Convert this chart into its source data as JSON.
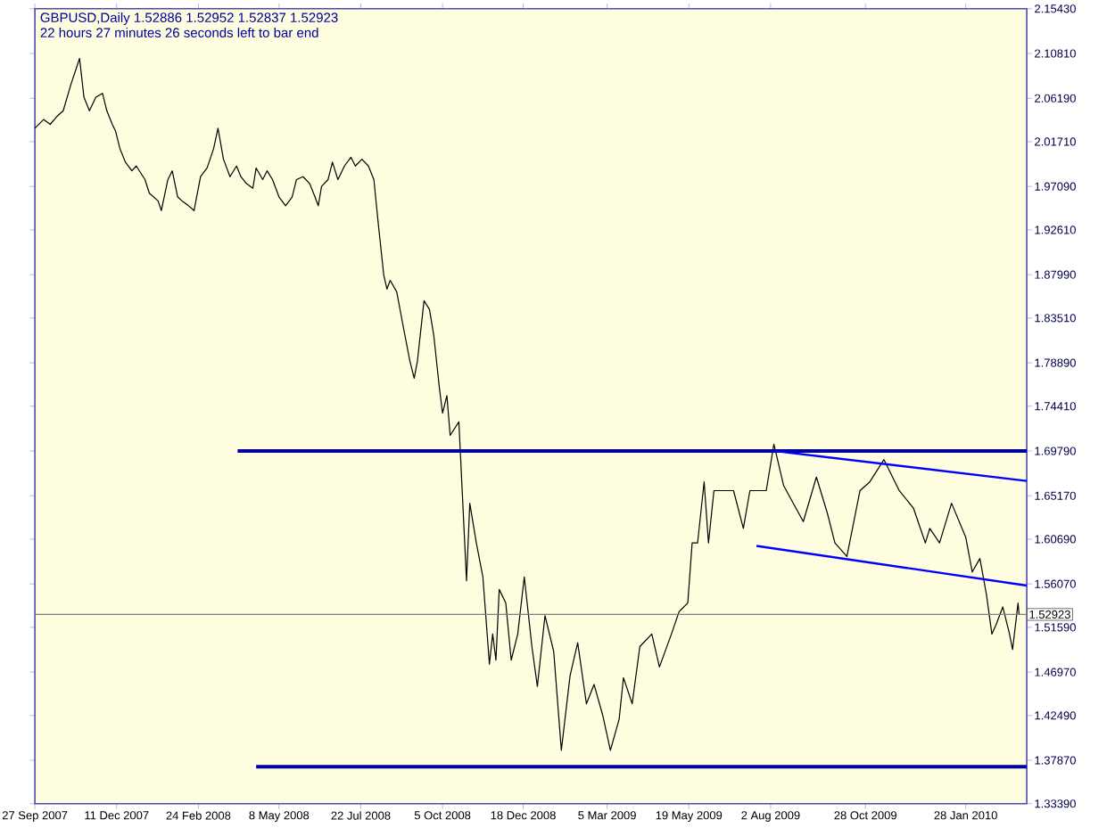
{
  "chart_data": {
    "type": "line",
    "title": "GBPUSD,Daily  1.52886 1.52952 1.52837 1.52923",
    "subtitle": "22 hours 27 minutes 26 seconds left to bar end",
    "xlim": [
      "2007-09-27",
      "2010-03-25"
    ],
    "xticks": [
      {
        "value": "2007-09-27",
        "label": "27 Sep 2007"
      },
      {
        "value": "2007-12-11",
        "label": "11 Dec 2007"
      },
      {
        "value": "2008-02-24",
        "label": "24 Feb 2008"
      },
      {
        "value": "2008-05-08",
        "label": "8 May 2008"
      },
      {
        "value": "2008-07-22",
        "label": "22 Jul 2008"
      },
      {
        "value": "2008-10-05",
        "label": "5 Oct 2008"
      },
      {
        "value": "2008-12-18",
        "label": "18 Dec 2008"
      },
      {
        "value": "2009-03-05",
        "label": "5 Mar 2009"
      },
      {
        "value": "2009-05-19",
        "label": "19 May 2009"
      },
      {
        "value": "2009-08-02",
        "label": "2 Aug 2009"
      },
      {
        "value": "2009-10-28",
        "label": "28 Oct 2009"
      },
      {
        "value": "2010-01-28",
        "label": "28 Jan 2010"
      }
    ],
    "ylim": [
      1.3339,
      2.1543
    ],
    "yticks": [
      {
        "value": 2.1543,
        "label": "2.15430"
      },
      {
        "value": 2.1081,
        "label": "2.10810"
      },
      {
        "value": 2.0619,
        "label": "2.06190"
      },
      {
        "value": 2.0171,
        "label": "2.01710"
      },
      {
        "value": 1.9709,
        "label": "1.97090"
      },
      {
        "value": 1.9261,
        "label": "1.92610"
      },
      {
        "value": 1.8799,
        "label": "1.87990"
      },
      {
        "value": 1.8351,
        "label": "1.83510"
      },
      {
        "value": 1.7889,
        "label": "1.78890"
      },
      {
        "value": 1.7441,
        "label": "1.74410"
      },
      {
        "value": 1.6979,
        "label": "1.69790"
      },
      {
        "value": 1.6517,
        "label": "1.65170"
      },
      {
        "value": 1.6069,
        "label": "1.60690"
      },
      {
        "value": 1.5607,
        "label": "1.56070"
      },
      {
        "value": 1.5159,
        "label": "1.51590"
      },
      {
        "value": 1.4697,
        "label": "1.46970"
      },
      {
        "value": 1.4249,
        "label": "1.42490"
      },
      {
        "value": 1.3787,
        "label": "1.37870"
      },
      {
        "value": 1.3339,
        "label": "1.33390"
      }
    ],
    "grid": false,
    "marker": "none",
    "line_style": "solid",
    "ref_lines": [
      {
        "axis": "y",
        "value": 1.52923,
        "label": "1.52923",
        "color": "#808080"
      }
    ],
    "series": [
      {
        "color": "#000000",
        "x": [
          "2007-09-27",
          "2007-10-05",
          "2007-10-11",
          "2007-10-18",
          "2007-10-23",
          "2007-10-30",
          "2007-11-07",
          "2007-11-11",
          "2007-11-16",
          "2007-11-22",
          "2007-11-28",
          "2007-12-02",
          "2007-12-07",
          "2007-12-10",
          "2007-12-14",
          "2007-12-19",
          "2007-12-25",
          "2007-12-29",
          "2008-01-06",
          "2008-01-10",
          "2008-01-18",
          "2008-01-21",
          "2008-01-27",
          "2008-01-31",
          "2008-02-05",
          "2008-02-09",
          "2008-02-15",
          "2008-02-20",
          "2008-02-26",
          "2008-03-03",
          "2008-03-09",
          "2008-03-13",
          "2008-03-18",
          "2008-03-24",
          "2008-03-30",
          "2008-04-03",
          "2008-04-08",
          "2008-04-14",
          "2008-04-17",
          "2008-04-23",
          "2008-04-27",
          "2008-05-02",
          "2008-05-08",
          "2008-05-14",
          "2008-05-20",
          "2008-05-24",
          "2008-05-30",
          "2008-06-05",
          "2008-06-10",
          "2008-06-13",
          "2008-06-16",
          "2008-06-22",
          "2008-06-26",
          "2008-07-01",
          "2008-07-07",
          "2008-07-13",
          "2008-07-17",
          "2008-07-23",
          "2008-07-29",
          "2008-08-03",
          "2008-08-07",
          "2008-08-12",
          "2008-08-15",
          "2008-08-18",
          "2008-08-24",
          "2008-08-30",
          "2008-09-05",
          "2008-09-09",
          "2008-09-12",
          "2008-09-18",
          "2008-09-23",
          "2008-09-27",
          "2008-10-02",
          "2008-10-05",
          "2008-10-09",
          "2008-10-12",
          "2008-10-20",
          "2008-10-27",
          "2008-10-30",
          "2008-11-05",
          "2008-11-11",
          "2008-11-17",
          "2008-11-20",
          "2008-11-23",
          "2008-11-26",
          "2008-12-02",
          "2008-12-07",
          "2008-12-13",
          "2008-12-19",
          "2008-12-26",
          "2008-12-31",
          "2009-01-07",
          "2009-01-15",
          "2009-01-22",
          "2009-01-30",
          "2009-02-06",
          "2009-02-14",
          "2009-02-21",
          "2009-03-01",
          "2009-03-08",
          "2009-03-16",
          "2009-03-20",
          "2009-03-28",
          "2009-04-04",
          "2009-04-15",
          "2009-04-22",
          "2009-05-03",
          "2009-05-10",
          "2009-05-18",
          "2009-05-22",
          "2009-05-27",
          "2009-06-02",
          "2009-06-06",
          "2009-06-11",
          "2009-06-29",
          "2009-07-08",
          "2009-07-14",
          "2009-07-29",
          "2009-08-05",
          "2009-08-14",
          "2009-09-01",
          "2009-09-13",
          "2009-09-23",
          "2009-09-30",
          "2009-10-11",
          "2009-10-23",
          "2009-11-01",
          "2009-11-14",
          "2009-11-28",
          "2009-12-11",
          "2009-12-22",
          "2009-12-26",
          "2010-01-04",
          "2010-01-15",
          "2010-01-28",
          "2010-02-03",
          "2010-02-10",
          "2010-02-16",
          "2010-02-21",
          "2010-02-25",
          "2010-03-03",
          "2010-03-09",
          "2010-03-12",
          "2010-03-17",
          "2010-03-18"
        ],
        "values": [
          2.031,
          2.04,
          2.035,
          2.044,
          2.049,
          2.076,
          2.103,
          2.063,
          2.049,
          2.063,
          2.067,
          2.049,
          2.035,
          2.028,
          2.01,
          1.996,
          1.987,
          1.992,
          1.978,
          1.964,
          1.956,
          1.946,
          1.978,
          1.987,
          1.96,
          1.956,
          1.951,
          1.946,
          1.981,
          1.99,
          2.01,
          2.031,
          1.999,
          1.981,
          1.992,
          1.981,
          1.974,
          1.969,
          1.99,
          1.978,
          1.987,
          1.978,
          1.96,
          1.951,
          1.96,
          1.978,
          1.981,
          1.974,
          1.96,
          1.951,
          1.971,
          1.978,
          1.996,
          1.978,
          1.992,
          2.001,
          1.992,
          1.999,
          1.992,
          1.978,
          1.933,
          1.88,
          1.865,
          1.874,
          1.862,
          1.826,
          1.791,
          1.773,
          1.791,
          1.853,
          1.844,
          1.817,
          1.764,
          1.737,
          1.755,
          1.714,
          1.728,
          1.564,
          1.644,
          1.603,
          1.568,
          1.478,
          1.509,
          1.482,
          1.555,
          1.541,
          1.482,
          1.509,
          1.568,
          1.496,
          1.455,
          1.528,
          1.491,
          1.389,
          1.466,
          1.5,
          1.437,
          1.457,
          1.425,
          1.389,
          1.421,
          1.464,
          1.437,
          1.496,
          1.509,
          1.475,
          1.509,
          1.532,
          1.541,
          1.603,
          1.603,
          1.666,
          1.603,
          1.657,
          1.657,
          1.618,
          1.657,
          1.657,
          1.705,
          1.662,
          1.625,
          1.671,
          1.634,
          1.603,
          1.589,
          1.657,
          1.666,
          1.689,
          1.657,
          1.639,
          1.603,
          1.618,
          1.603,
          1.644,
          1.609,
          1.573,
          1.587,
          1.55,
          1.509,
          1.519,
          1.537,
          1.51,
          1.493,
          1.541,
          1.529
        ]
      },
      {
        "color": "#0000a0",
        "x": [
          "2008-03-31",
          "2010-03-25"
        ],
        "values": [
          1.698,
          1.698
        ]
      },
      {
        "color": "#0000a0",
        "x": [
          "2008-04-17",
          "2010-03-25"
        ],
        "values": [
          1.372,
          1.372
        ]
      },
      {
        "color": "#0000ff",
        "x": [
          "2009-08-05",
          "2010-03-25"
        ],
        "values": [
          1.698,
          1.667
        ]
      },
      {
        "color": "#0000ff",
        "x": [
          "2009-07-20",
          "2010-03-25"
        ],
        "values": [
          1.6,
          1.559
        ]
      }
    ]
  }
}
